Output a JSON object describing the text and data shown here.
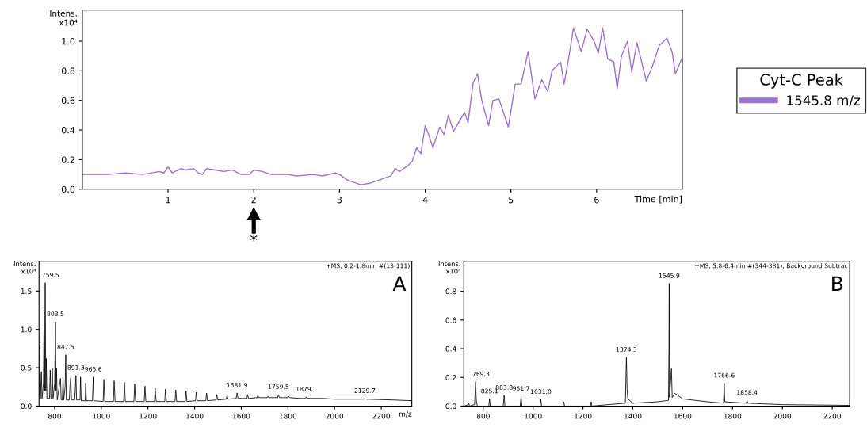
{
  "chart_data": [
    {
      "type": "line",
      "ylabel": "Intens.\nx10⁴",
      "xlabel": "Time [min]",
      "legend_title": "Cyt-C Peak",
      "legend": "right",
      "grid": false,
      "x": [
        0,
        0.3,
        0.5,
        0.7,
        0.9,
        0.95,
        1.0,
        1.05,
        1.15,
        1.2,
        1.3,
        1.35,
        1.4,
        1.45,
        1.55,
        1.65,
        1.75,
        1.85,
        1.95,
        2.0,
        2.1,
        2.2,
        2.4,
        2.5,
        2.7,
        2.8,
        2.95,
        3.0,
        3.1,
        3.25,
        3.35,
        3.5,
        3.6,
        3.65,
        3.7,
        3.8,
        3.85,
        3.9,
        3.95,
        4.0,
        4.04,
        4.09,
        4.17,
        4.22,
        4.27,
        4.33,
        4.46,
        4.5,
        4.56,
        4.61,
        4.66,
        4.74,
        4.79,
        4.86,
        4.97,
        5.05,
        5.12,
        5.2,
        5.28,
        5.36,
        5.43,
        5.48,
        5.58,
        5.62,
        5.67,
        5.73,
        5.82,
        5.89,
        5.97,
        6.02,
        6.07,
        6.13,
        6.2,
        6.24,
        6.29,
        6.36,
        6.41,
        6.47,
        6.58,
        6.65,
        6.73,
        6.82,
        6.88,
        6.92,
        7.0
      ],
      "series": [
        {
          "name": "1545.8 m/z",
          "color": "#9a72d0",
          "values": [
            0.1,
            0.1,
            0.11,
            0.1,
            0.12,
            0.11,
            0.15,
            0.11,
            0.14,
            0.13,
            0.14,
            0.11,
            0.1,
            0.14,
            0.13,
            0.12,
            0.13,
            0.1,
            0.1,
            0.13,
            0.12,
            0.1,
            0.1,
            0.09,
            0.1,
            0.09,
            0.11,
            0.1,
            0.06,
            0.03,
            0.04,
            0.07,
            0.09,
            0.14,
            0.12,
            0.16,
            0.19,
            0.28,
            0.24,
            0.43,
            0.37,
            0.28,
            0.42,
            0.37,
            0.5,
            0.39,
            0.52,
            0.45,
            0.72,
            0.78,
            0.6,
            0.43,
            0.6,
            0.61,
            0.42,
            0.71,
            0.71,
            0.93,
            0.61,
            0.74,
            0.66,
            0.8,
            0.86,
            0.71,
            0.87,
            1.09,
            0.93,
            1.08,
            1.0,
            0.92,
            1.09,
            0.88,
            0.86,
            0.68,
            0.9,
            1.0,
            0.79,
            0.99,
            0.73,
            0.83,
            0.97,
            1.02,
            0.93,
            0.78,
            0.89
          ]
        }
      ],
      "xlim": [
        0,
        7.0
      ],
      "ylim": [
        0,
        1.21
      ],
      "xticks": [
        1,
        2,
        3,
        4,
        5,
        6
      ],
      "yticks": [
        {
          "value": 0,
          "label": "0.0"
        },
        {
          "value": 0.2,
          "label": "0.2"
        },
        {
          "value": 0.4,
          "label": "0.4"
        },
        {
          "value": 0.6,
          "label": "0.6"
        },
        {
          "value": 0.8,
          "label": "0.8"
        },
        {
          "value": 1.0,
          "label": "1.0"
        }
      ],
      "annotations": [
        "*"
      ]
    },
    {
      "type": "line",
      "ylabel": "Intens.\nx10⁴",
      "xlabel": "m/z",
      "grid": false,
      "x": [
        733,
        736,
        739,
        743,
        746,
        752,
        755,
        757,
        759.5,
        762,
        764,
        767,
        778,
        781,
        784,
        787,
        790,
        793,
        800,
        803.5,
        806,
        808,
        811,
        822,
        825,
        828,
        833,
        836,
        839,
        845,
        847.5,
        850,
        863,
        866,
        869,
        872,
        886,
        889,
        891.3,
        894,
        909,
        911,
        914,
        931,
        933,
        936,
        962,
        965.6,
        968,
        1008,
        1011,
        1015,
        1052,
        1055,
        1059,
        1096,
        1099,
        1103,
        1140,
        1143,
        1147,
        1184,
        1187,
        1191,
        1228,
        1231,
        1235,
        1272,
        1275,
        1279,
        1316,
        1319,
        1323,
        1360,
        1363,
        1367,
        1404,
        1407,
        1411,
        1448,
        1451,
        1455,
        1492,
        1495,
        1499,
        1536,
        1539,
        1543,
        1578,
        1581.9,
        1586,
        1624,
        1627,
        1631,
        1668,
        1671,
        1675,
        1712,
        1715,
        1719,
        1756,
        1759.5,
        1763,
        1800,
        1803,
        1807,
        1850,
        1876,
        1879.1,
        1883,
        1950,
        2000,
        2100,
        2126,
        2129.7,
        2135,
        2250,
        2330
      ],
      "series": [
        {
          "color": "#000000",
          "values": [
            0.1,
            0.8,
            0.1,
            0.45,
            0.1,
            0.3,
            1.25,
            0.2,
            1.61,
            0.2,
            0.62,
            0.1,
            0.1,
            0.47,
            0.1,
            0.1,
            0.49,
            0.1,
            0.3,
            1.1,
            0.2,
            0.5,
            0.08,
            0.3,
            0.36,
            0.08,
            0.08,
            0.37,
            0.08,
            0.25,
            0.67,
            0.08,
            0.08,
            0.28,
            0.37,
            0.08,
            0.08,
            0.25,
            0.4,
            0.08,
            0.08,
            0.38,
            0.07,
            0.07,
            0.3,
            0.07,
            0.07,
            0.38,
            0.07,
            0.06,
            0.35,
            0.06,
            0.06,
            0.33,
            0.06,
            0.06,
            0.31,
            0.06,
            0.06,
            0.29,
            0.06,
            0.06,
            0.26,
            0.06,
            0.06,
            0.23,
            0.06,
            0.06,
            0.22,
            0.06,
            0.06,
            0.21,
            0.06,
            0.06,
            0.2,
            0.06,
            0.07,
            0.18,
            0.07,
            0.07,
            0.17,
            0.07,
            0.08,
            0.15,
            0.08,
            0.09,
            0.14,
            0.09,
            0.1,
            0.17,
            0.1,
            0.1,
            0.15,
            0.1,
            0.11,
            0.14,
            0.11,
            0.11,
            0.13,
            0.11,
            0.11,
            0.15,
            0.11,
            0.11,
            0.13,
            0.11,
            0.1,
            0.1,
            0.12,
            0.1,
            0.1,
            0.09,
            0.09,
            0.09,
            0.1,
            0.09,
            0.08,
            0.07
          ]
        }
      ],
      "xlim": [
        733,
        2331
      ],
      "ylim": [
        0,
        1.89
      ],
      "xticks": [
        800,
        1000,
        1200,
        1400,
        1600,
        1800,
        2000,
        2200
      ],
      "yticks": [
        {
          "value": 0,
          "label": "0.0"
        },
        {
          "value": 0.5,
          "label": "0.5"
        },
        {
          "value": 1.0,
          "label": "1.0"
        },
        {
          "value": 1.5,
          "label": "1.5"
        }
      ],
      "annotations": [
        "+MS, 0.2-1.8min #(13-111)",
        "A",
        {
          "text": "759.5",
          "x": 759.5,
          "y": 1.61
        },
        {
          "text": "803.5",
          "x": 803.5,
          "y": 1.1
        },
        {
          "text": "847.5",
          "x": 847.5,
          "y": 0.67
        },
        {
          "text": "891.3",
          "x": 891.3,
          "y": 0.4
        },
        {
          "text": "965.6",
          "x": 965.6,
          "y": 0.38
        },
        {
          "text": "1581.9",
          "x": 1581.9,
          "y": 0.17
        },
        {
          "text": "1759.5",
          "x": 1759.5,
          "y": 0.15
        },
        {
          "text": "1879.1",
          "x": 1879.1,
          "y": 0.12
        },
        {
          "text": "2129.7",
          "x": 2129.7,
          "y": 0.1
        }
      ]
    },
    {
      "type": "line",
      "ylabel": "Intens.\nx10⁴",
      "grid": false,
      "x": [
        722,
        740,
        742,
        744,
        765,
        769.3,
        772,
        776,
        822,
        825.1,
        828,
        880,
        883.8,
        887,
        948,
        951.7,
        955,
        1028,
        1031.0,
        1034,
        1120,
        1123,
        1126,
        1230,
        1233,
        1236,
        1300,
        1370,
        1374.3,
        1377,
        1380,
        1400,
        1500,
        1543,
        1545,
        1545.9,
        1547,
        1555,
        1558,
        1568,
        1600,
        1700,
        1764,
        1766.6,
        1769,
        1855,
        1858.4,
        1861,
        2000,
        2270
      ],
      "series": [
        {
          "color": "#000000",
          "values": [
            0,
            0.01,
            0.02,
            0,
            0.01,
            0.17,
            0.04,
            0,
            0,
            0.05,
            0,
            0,
            0.075,
            0,
            0,
            0.068,
            0,
            0,
            0.046,
            0,
            0,
            0.03,
            0,
            0,
            0.03,
            0,
            0.01,
            0.02,
            0.34,
            0.12,
            0.05,
            0.02,
            0.03,
            0.04,
            0.41,
            0.855,
            0.06,
            0.26,
            0.06,
            0.09,
            0.05,
            0.03,
            0.02,
            0.16,
            0.03,
            0.02,
            0.04,
            0.02,
            0.01,
            0.005
          ]
        }
      ],
      "xlim": [
        722,
        2270
      ],
      "ylim": [
        0,
        1.01
      ],
      "xticks": [
        800,
        1000,
        1200,
        1400,
        1600,
        1800,
        2000,
        2200
      ],
      "yticks": [
        {
          "value": 0,
          "label": "0.0"
        },
        {
          "value": 0.2,
          "label": "0.2"
        },
        {
          "value": 0.4,
          "label": "0.4"
        },
        {
          "value": 0.6,
          "label": "0.6"
        },
        {
          "value": 0.8,
          "label": "0.8"
        }
      ],
      "annotations": [
        "+MS, 5.8-6.4min #(344-381), Background Subtrac",
        "B",
        {
          "text": "769.3",
          "x": 769.3,
          "y": 0.17
        },
        {
          "text": "825.1",
          "x": 825.1,
          "y": 0.05
        },
        {
          "text": "883.8",
          "x": 883.8,
          "y": 0.075
        },
        {
          "text": "951.7",
          "x": 951.7,
          "y": 0.068
        },
        {
          "text": "1031.0",
          "x": 1031.0,
          "y": 0.046
        },
        {
          "text": "1374.3",
          "x": 1374.3,
          "y": 0.34
        },
        {
          "text": "1545.9",
          "x": 1545.9,
          "y": 0.855
        },
        {
          "text": "1766.6",
          "x": 1766.6,
          "y": 0.16
        },
        {
          "text": "1858.4",
          "x": 1858.4,
          "y": 0.04
        }
      ]
    }
  ]
}
